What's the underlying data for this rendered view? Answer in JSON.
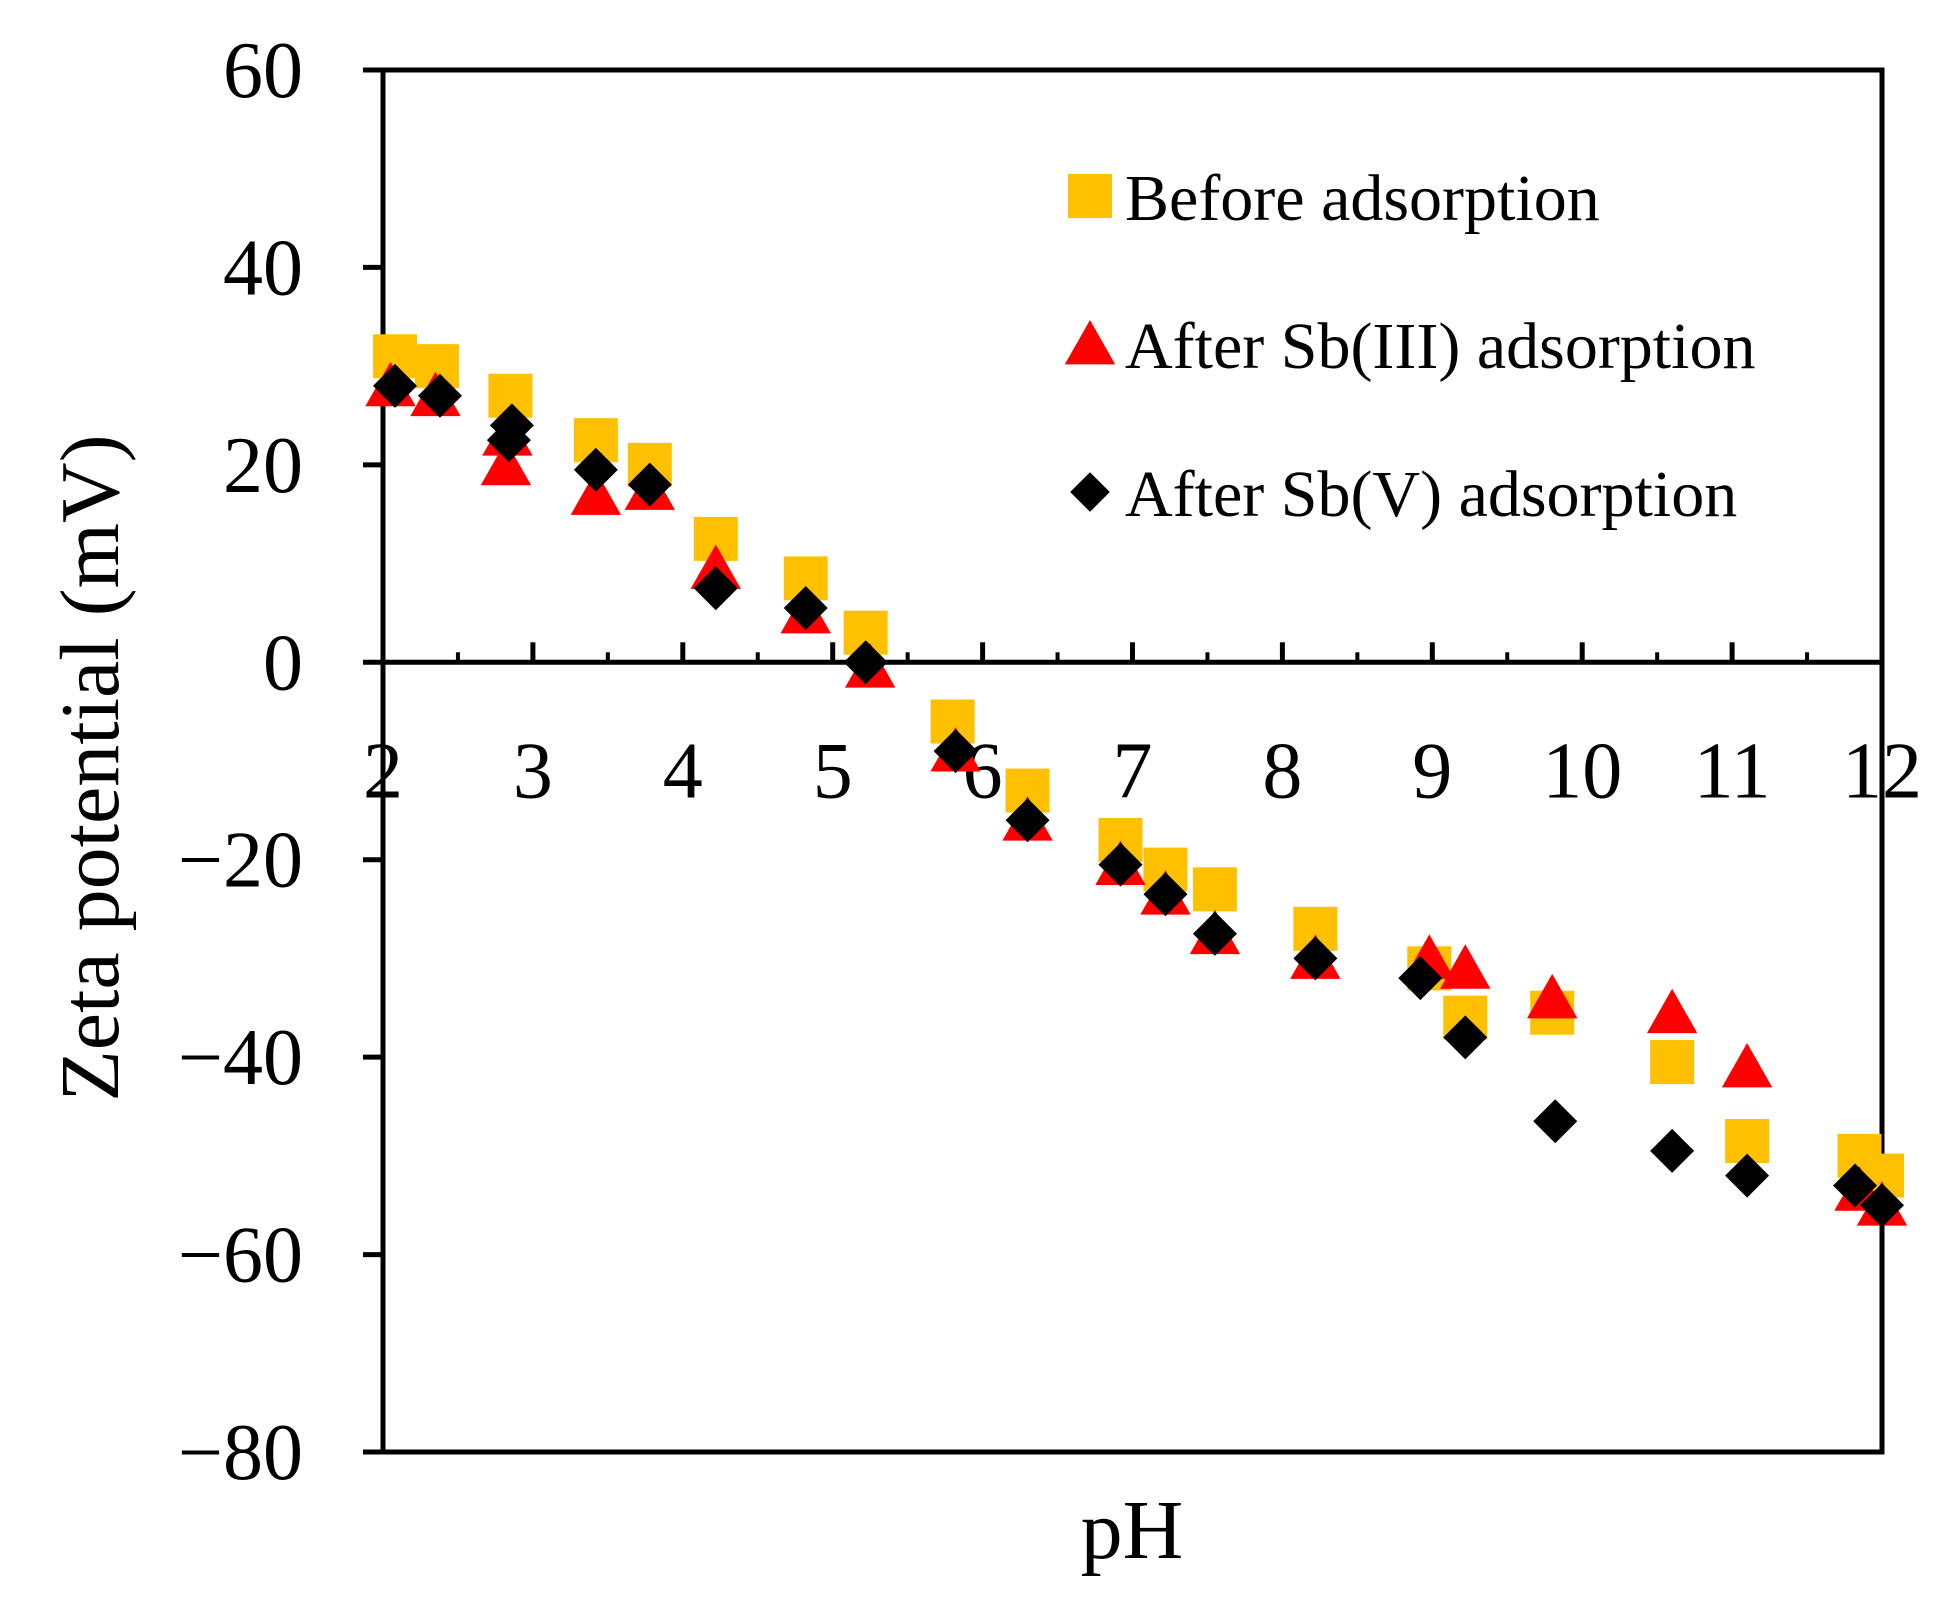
{
  "chart_data": {
    "type": "scatter",
    "title": "",
    "xlabel": "pH",
    "ylabel": "Zeta potential (mV)",
    "xlim": [
      2,
      12
    ],
    "ylim": [
      -80,
      60
    ],
    "x_ticks": [
      2,
      3,
      4,
      5,
      6,
      7,
      8,
      9,
      10,
      11,
      12
    ],
    "x_tick_labels": [
      "2",
      "3",
      "4",
      "5",
      "6",
      "7",
      "8",
      "9",
      "10",
      "11",
      "12"
    ],
    "y_ticks": [
      -80,
      -60,
      -40,
      -20,
      0,
      20,
      40,
      60
    ],
    "y_tick_labels": [
      "−80",
      "−60",
      "−40",
      "−20",
      "0",
      "20",
      "40",
      "60"
    ],
    "grid": false,
    "legend_position": "top-right",
    "series": [
      {
        "name": "Before adsorption",
        "marker": "square",
        "color": "#FFC000",
        "x": [
          2.08,
          2.36,
          2.85,
          3.42,
          3.78,
          4.22,
          4.82,
          5.22,
          5.8,
          6.3,
          6.92,
          7.22,
          7.55,
          8.22,
          8.98,
          9.22,
          9.8,
          10.6,
          11.1,
          11.85,
          12.0
        ],
        "y": [
          31,
          30,
          27,
          22.5,
          20,
          12.5,
          8.5,
          3,
          -6,
          -13,
          -18,
          -21,
          -23,
          -27,
          -31,
          -36,
          -35.5,
          -40.5,
          -48.5,
          -50,
          -52
        ]
      },
      {
        "name": "After Sb(III) adsorption",
        "marker": "triangle",
        "color": "#FF0000",
        "x": [
          2.05,
          2.35,
          2.83,
          2.82,
          3.42,
          3.78,
          4.22,
          4.82,
          5.25,
          5.82,
          6.3,
          6.92,
          7.22,
          7.55,
          8.22,
          8.98,
          9.22,
          9.8,
          10.6,
          11.1,
          11.85,
          12.0
        ],
        "y": [
          28,
          27,
          23,
          20,
          17,
          17.5,
          9.5,
          5,
          -0.5,
          -9,
          -16,
          -20.5,
          -23.5,
          -27.5,
          -30,
          -30,
          -31,
          -34,
          -35.5,
          -41,
          -53.5,
          -55
        ]
      },
      {
        "name": "After Sb(V) adsorption",
        "marker": "diamond",
        "color": "#000000",
        "x": [
          2.08,
          2.38,
          2.86,
          2.84,
          3.42,
          3.78,
          4.22,
          4.82,
          5.22,
          5.82,
          6.3,
          6.92,
          7.22,
          7.55,
          8.22,
          8.92,
          9.22,
          9.82,
          10.6,
          11.1,
          11.82,
          12.0
        ],
        "y": [
          28,
          27,
          24,
          22.5,
          19.5,
          18,
          7.5,
          5.5,
          0,
          -9,
          -16,
          -20.5,
          -23.5,
          -27.5,
          -30,
          -32,
          -38,
          -46.5,
          -49.5,
          -52,
          -53,
          -55
        ]
      }
    ]
  }
}
